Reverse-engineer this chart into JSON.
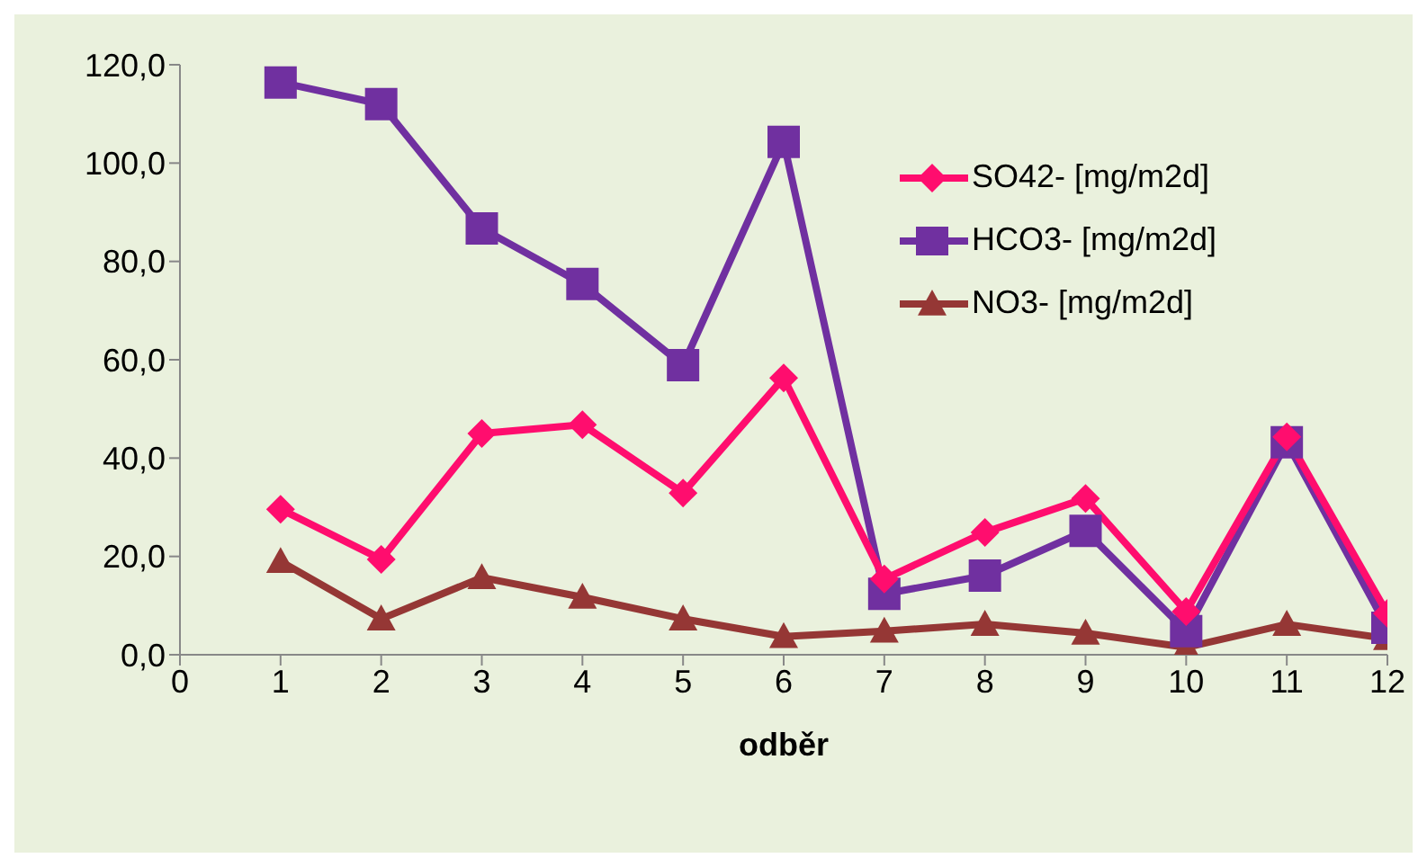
{
  "chart_data": {
    "type": "line",
    "xlabel": "odběr",
    "x": [
      1,
      2,
      3,
      4,
      5,
      6,
      7,
      8,
      9,
      10,
      11,
      12
    ],
    "xlim": [
      0,
      12
    ],
    "xticks": [
      0,
      1,
      2,
      3,
      4,
      5,
      6,
      7,
      8,
      9,
      10,
      11,
      12
    ],
    "ylim": [
      0,
      120
    ],
    "yticks": [
      {
        "value": 0,
        "label": "0,0"
      },
      {
        "value": 20,
        "label": "20,0"
      },
      {
        "value": 40,
        "label": "40,0"
      },
      {
        "value": 60,
        "label": "60,0"
      },
      {
        "value": 80,
        "label": "80,0"
      },
      {
        "value": 100,
        "label": "100,0"
      },
      {
        "value": 120,
        "label": "120,0"
      }
    ],
    "grid": false,
    "legend": "right",
    "line_style": "solid",
    "series": [
      {
        "name": "SO42- [mg/m2d]",
        "color": "#ff0d6e",
        "marker": "diamond",
        "values": [
          29.6,
          19.4,
          45,
          46.8,
          32.9,
          56.3,
          15.4,
          24.9,
          31.8,
          8.8,
          44.3,
          8.4
        ]
      },
      {
        "name": "HCO3- [mg/m2d]",
        "color": "#7030a0",
        "marker": "square",
        "values": [
          116.4,
          112,
          86.7,
          75.4,
          58.9,
          104.3,
          12.4,
          16.1,
          25.2,
          4.8,
          43.2,
          5.5
        ]
      },
      {
        "name": "NO3- [mg/m2d]",
        "color": "#953735",
        "marker": "triangle",
        "values": [
          19,
          7.3,
          15.7,
          11.7,
          7.3,
          3.7,
          4.8,
          6.2,
          4.4,
          1.5,
          6.2,
          3.3
        ]
      }
    ]
  }
}
